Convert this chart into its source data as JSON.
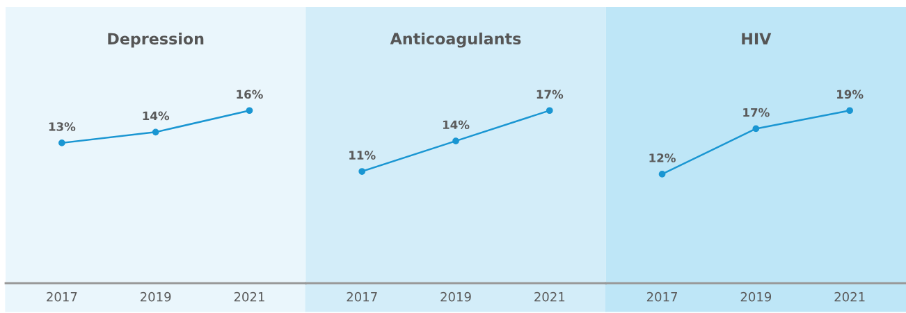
{
  "chart_data": [
    {
      "type": "line",
      "title": "Depression",
      "categories": [
        "2017",
        "2019",
        "2021"
      ],
      "series": [
        {
          "color": "#1a96d2",
          "values": [
            13,
            14,
            16
          ],
          "value_labels": [
            "13%",
            "14%",
            "16%"
          ]
        }
      ],
      "marker": "circle",
      "tick_labels": "x"
    },
    {
      "type": "line",
      "title": "Anticoagulants",
      "categories": [
        "2017",
        "2019",
        "2021"
      ],
      "series": [
        {
          "color": "#1a96d2",
          "values": [
            11,
            14,
            17
          ],
          "value_labels": [
            "11%",
            "14%",
            "17%"
          ]
        }
      ],
      "marker": "circle",
      "tick_labels": "x"
    },
    {
      "type": "line",
      "title": "HIV",
      "categories": [
        "2017",
        "2019",
        "2021"
      ],
      "series": [
        {
          "color": "#1a96d2",
          "values": [
            12,
            17,
            19
          ],
          "value_labels": [
            "12%",
            "17%",
            "19%"
          ]
        }
      ],
      "marker": "circle",
      "tick_labels": "x"
    }
  ]
}
